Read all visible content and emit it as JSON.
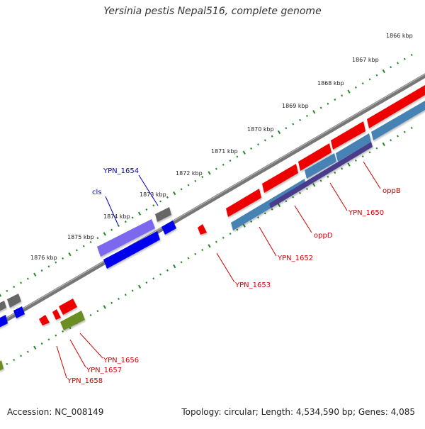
{
  "title": "Yersinia pestis Nepal516, complete genome",
  "footer": {
    "accession": "Accession: NC_008149",
    "summary": "Topology: circular; Length: 4,534,590 bp; Genes: 4,085"
  },
  "colors": {
    "forward": "#ee0000",
    "reverse": "#0000ee",
    "gray": "#666666",
    "olive": "#6b8e23",
    "steel": "#4682b4",
    "slate": "#483d8b",
    "mediumslate": "#7b68ee",
    "label_red": "#cc0000",
    "label_blue": "#0000cc",
    "backbone": "#777777",
    "tick_green": "#228822"
  },
  "ruler": {
    "labels": [
      "1866 kbp",
      "1867 kbp",
      "1868 kbp",
      "1869 kbp",
      "1870 kbp",
      "1871 kbp",
      "1872 kbp",
      "1873 kbp",
      "1874 kbp",
      "1875 kbp",
      "1876 kbp"
    ]
  },
  "gene_labels": [
    {
      "text": "YPN_1654",
      "color": "blue"
    },
    {
      "text": "cls",
      "color": "blue"
    },
    {
      "text": "oppB",
      "color": "red"
    },
    {
      "text": "YPN_1650",
      "color": "red"
    },
    {
      "text": "oppD",
      "color": "red"
    },
    {
      "text": "YPN_1652",
      "color": "red"
    },
    {
      "text": "YPN_1653",
      "color": "red"
    },
    {
      "text": "YPN_1656",
      "color": "red"
    },
    {
      "text": "YPN_1657",
      "color": "red"
    },
    {
      "text": "YPN_1658",
      "color": "red"
    }
  ]
}
